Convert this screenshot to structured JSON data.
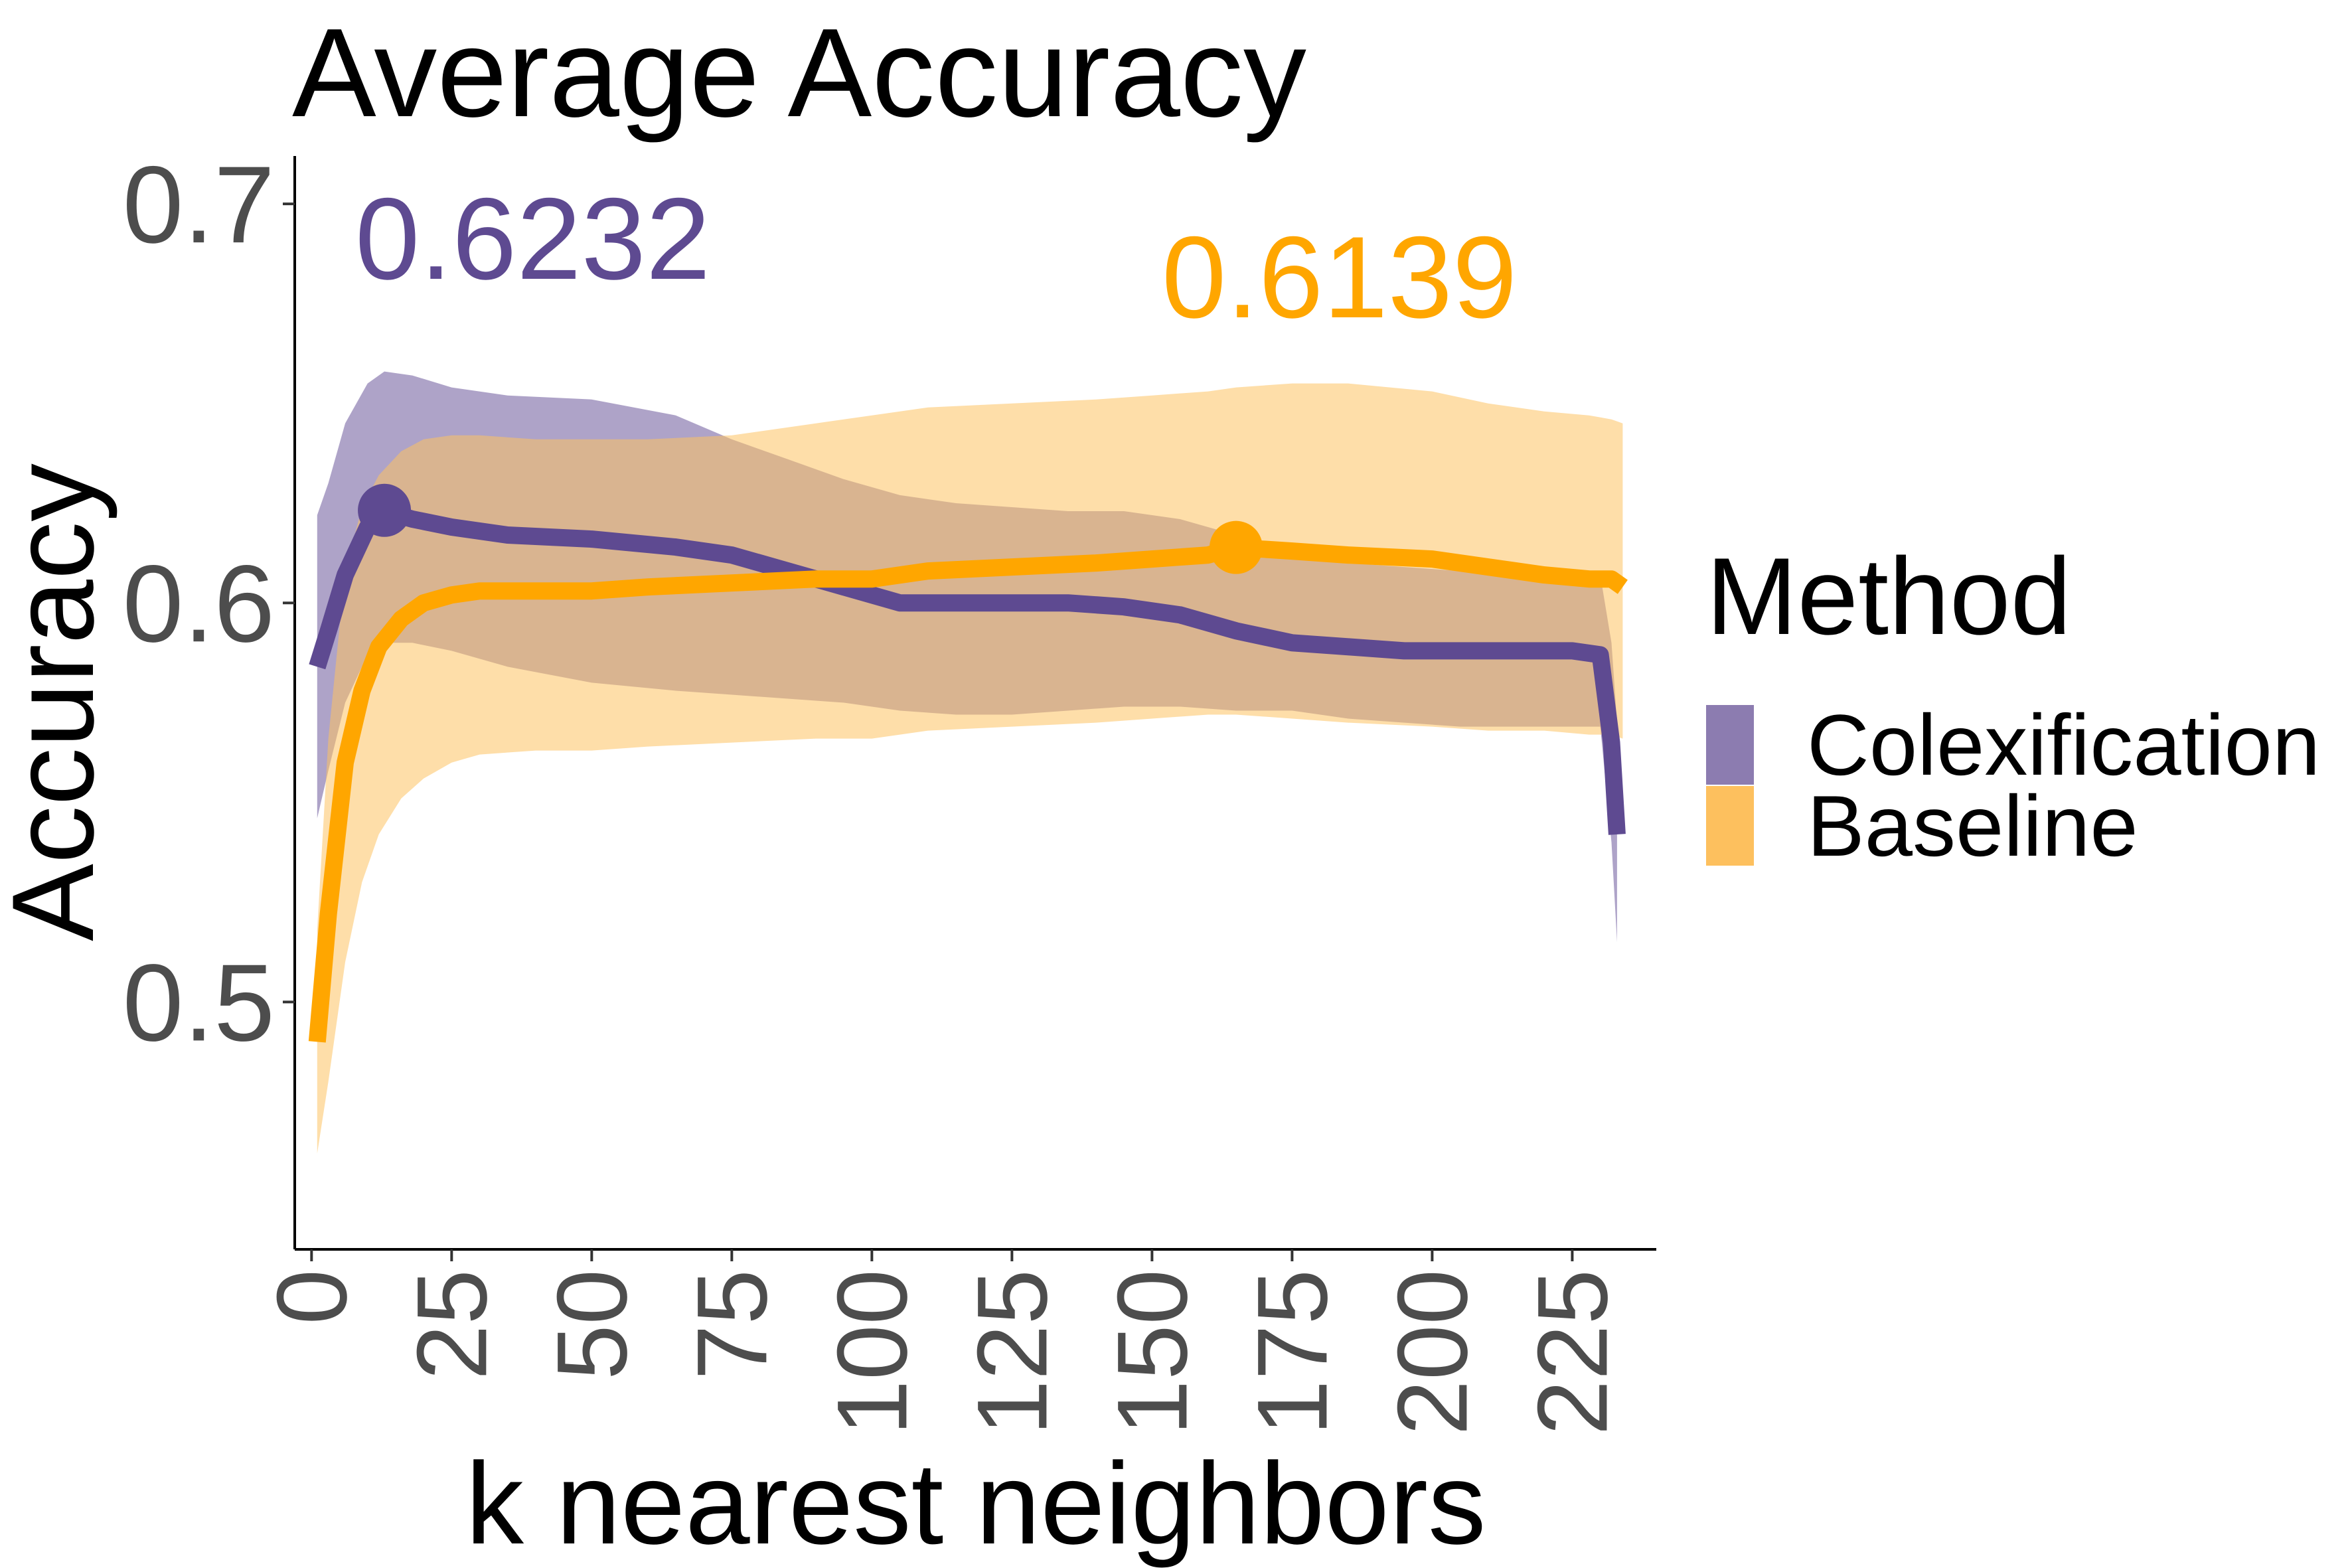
{
  "chart_data": {
    "type": "line",
    "title": "Average Accuracy",
    "xlabel": "k nearest neighbors",
    "ylabel": "Accuracy",
    "xlim": [
      -3,
      240
    ],
    "ylim": [
      0.438,
      0.712
    ],
    "x_ticks": [
      0,
      25,
      50,
      75,
      100,
      125,
      150,
      175,
      200,
      225
    ],
    "x_tick_labels": [
      "0",
      "25",
      "50",
      "75",
      "100",
      "125",
      "150",
      "175",
      "200",
      "225"
    ],
    "y_ticks": [
      0.5,
      0.6,
      0.7
    ],
    "y_tick_labels": [
      "0.5",
      "0.6",
      "0.7"
    ],
    "grid": false,
    "legend": {
      "title": "Method",
      "position": "right",
      "entries": [
        "Colexification",
        "Baseline"
      ]
    },
    "series": [
      {
        "name": "Colexification",
        "color": "#5e4a91",
        "band_color": "#8c7cb0",
        "band_opacity": 0.7,
        "x": [
          1,
          3,
          6,
          10,
          13,
          18,
          25,
          35,
          50,
          65,
          75,
          85,
          95,
          105,
          115,
          125,
          135,
          145,
          155,
          165,
          175,
          185,
          195,
          205,
          215,
          225,
          230,
          232,
          233
        ],
        "y": [
          0.584,
          0.593,
          0.607,
          0.619,
          0.623,
          0.621,
          0.619,
          0.617,
          0.616,
          0.614,
          0.612,
          0.608,
          0.604,
          0.6,
          0.6,
          0.6,
          0.6,
          0.599,
          0.597,
          0.593,
          0.59,
          0.589,
          0.588,
          0.588,
          0.588,
          0.588,
          0.587,
          0.565,
          0.542
        ],
        "lower": [
          0.546,
          0.558,
          0.575,
          0.587,
          0.59,
          0.59,
          0.588,
          0.584,
          0.58,
          0.578,
          0.577,
          0.576,
          0.575,
          0.573,
          0.572,
          0.572,
          0.573,
          0.574,
          0.574,
          0.573,
          0.573,
          0.571,
          0.57,
          0.569,
          0.569,
          0.569,
          0.569,
          0.54,
          0.515
        ],
        "upper": [
          0.622,
          0.63,
          0.645,
          0.655,
          0.658,
          0.657,
          0.654,
          0.652,
          0.651,
          0.647,
          0.641,
          0.636,
          0.631,
          0.627,
          0.625,
          0.624,
          0.623,
          0.623,
          0.621,
          0.617,
          0.612,
          0.61,
          0.609,
          0.608,
          0.608,
          0.608,
          0.607,
          0.59,
          0.57
        ],
        "max_point": {
          "x": 13,
          "y": 0.6232,
          "label": "0.6232"
        }
      },
      {
        "name": "Baseline",
        "color": "#ffa600",
        "band_color": "#fdc262",
        "band_opacity": 0.55,
        "x": [
          1,
          3,
          6,
          9,
          12,
          16,
          20,
          25,
          30,
          40,
          50,
          60,
          75,
          90,
          100,
          110,
          125,
          140,
          150,
          160,
          165,
          175,
          185,
          200,
          210,
          220,
          228,
          232,
          234
        ],
        "y": [
          0.49,
          0.522,
          0.56,
          0.578,
          0.589,
          0.596,
          0.6,
          0.602,
          0.603,
          0.603,
          0.603,
          0.604,
          0.605,
          0.606,
          0.606,
          0.608,
          0.609,
          0.61,
          0.611,
          0.612,
          0.6139,
          0.613,
          0.612,
          0.611,
          0.609,
          0.607,
          0.606,
          0.606,
          0.604
        ],
        "lower": [
          0.462,
          0.48,
          0.51,
          0.53,
          0.542,
          0.551,
          0.556,
          0.56,
          0.562,
          0.563,
          0.563,
          0.564,
          0.565,
          0.566,
          0.566,
          0.568,
          0.569,
          0.57,
          0.571,
          0.572,
          0.572,
          0.571,
          0.57,
          0.569,
          0.568,
          0.568,
          0.567,
          0.567,
          0.566
        ],
        "upper": [
          0.518,
          0.566,
          0.608,
          0.624,
          0.632,
          0.638,
          0.641,
          0.642,
          0.642,
          0.641,
          0.641,
          0.641,
          0.642,
          0.645,
          0.647,
          0.649,
          0.65,
          0.651,
          0.652,
          0.653,
          0.654,
          0.655,
          0.655,
          0.653,
          0.65,
          0.648,
          0.647,
          0.646,
          0.645
        ],
        "max_point": {
          "x": 165,
          "y": 0.6139,
          "label": "0.6139"
        }
      }
    ]
  }
}
